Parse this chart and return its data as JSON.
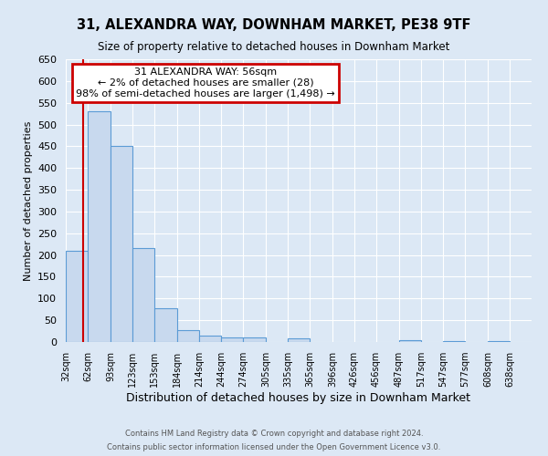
{
  "title": "31, ALEXANDRA WAY, DOWNHAM MARKET, PE38 9TF",
  "subtitle": "Size of property relative to detached houses in Downham Market",
  "xlabel": "Distribution of detached houses by size in Downham Market",
  "ylabel": "Number of detached properties",
  "bin_labels": [
    "32sqm",
    "62sqm",
    "93sqm",
    "123sqm",
    "153sqm",
    "184sqm",
    "214sqm",
    "244sqm",
    "274sqm",
    "305sqm",
    "335sqm",
    "365sqm",
    "396sqm",
    "426sqm",
    "456sqm",
    "487sqm",
    "517sqm",
    "547sqm",
    "577sqm",
    "608sqm",
    "638sqm"
  ],
  "bar_heights": [
    210,
    530,
    450,
    215,
    78,
    28,
    15,
    10,
    10,
    0,
    8,
    0,
    0,
    0,
    0,
    5,
    0,
    3,
    0,
    3,
    0
  ],
  "bar_color": "#c8d9ee",
  "bar_edge_color": "#5b9bd5",
  "red_line_x": 56,
  "ylim": [
    0,
    650
  ],
  "yticks": [
    0,
    50,
    100,
    150,
    200,
    250,
    300,
    350,
    400,
    450,
    500,
    550,
    600,
    650
  ],
  "annotation_title": "31 ALEXANDRA WAY: 56sqm",
  "annotation_line1": "← 2% of detached houses are smaller (28)",
  "annotation_line2": "98% of semi-detached houses are larger (1,498) →",
  "annotation_box_color": "#ffffff",
  "annotation_box_edge": "#cc0000",
  "footer_line1": "Contains HM Land Registry data © Crown copyright and database right 2024.",
  "footer_line2": "Contains public sector information licensed under the Open Government Licence v3.0.",
  "background_color": "#dce8f5",
  "plot_background": "#dce8f5",
  "grid_color": "#ffffff",
  "bin_edges": [
    32,
    62,
    93,
    123,
    153,
    184,
    214,
    244,
    274,
    305,
    335,
    365,
    396,
    426,
    456,
    487,
    517,
    547,
    577,
    608,
    638,
    668
  ]
}
